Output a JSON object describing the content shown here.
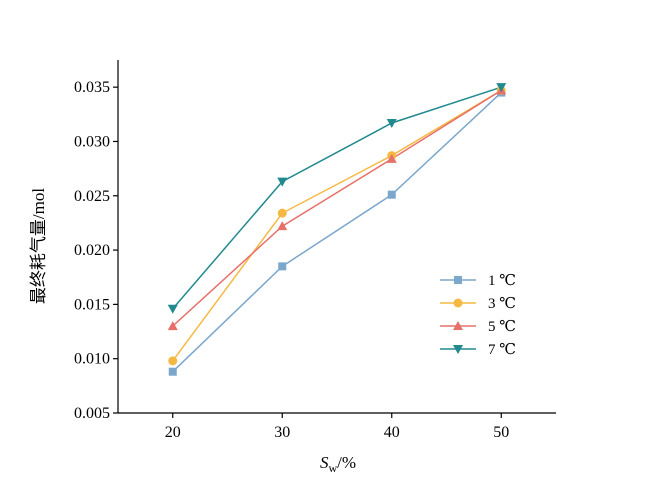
{
  "chart_data": {
    "type": "line",
    "title": "",
    "xlabel": {
      "main": "S",
      "sub": "w",
      "suffix": "/%"
    },
    "ylabel": "最终耗气量/mol",
    "x": [
      20,
      30,
      40,
      50
    ],
    "xticks": [
      "20",
      "30",
      "40",
      "50"
    ],
    "ylim": [
      0.005,
      0.0375
    ],
    "yticks": [
      "0.005",
      "0.010",
      "0.015",
      "0.020",
      "0.025",
      "0.030",
      "0.035"
    ],
    "ytick_values": [
      0.005,
      0.01,
      0.015,
      0.02,
      0.025,
      0.03,
      0.035
    ],
    "grid": false,
    "legend_position": "center-right",
    "series": [
      {
        "name": "1 ℃",
        "color": "#7ba7cc",
        "marker": "square",
        "values": [
          0.0088,
          0.0185,
          0.0251,
          0.0345
        ]
      },
      {
        "name": "3 ℃",
        "color": "#f5b943",
        "marker": "circle",
        "values": [
          0.0098,
          0.0234,
          0.0287,
          0.0347
        ]
      },
      {
        "name": "5 ℃",
        "color": "#e8706a",
        "marker": "triangle-up",
        "values": [
          0.013,
          0.0222,
          0.0284,
          0.0347
        ]
      },
      {
        "name": "7 ℃",
        "color": "#218a8e",
        "marker": "triangle-down",
        "values": [
          0.0146,
          0.0263,
          0.0317,
          0.035
        ]
      }
    ]
  }
}
